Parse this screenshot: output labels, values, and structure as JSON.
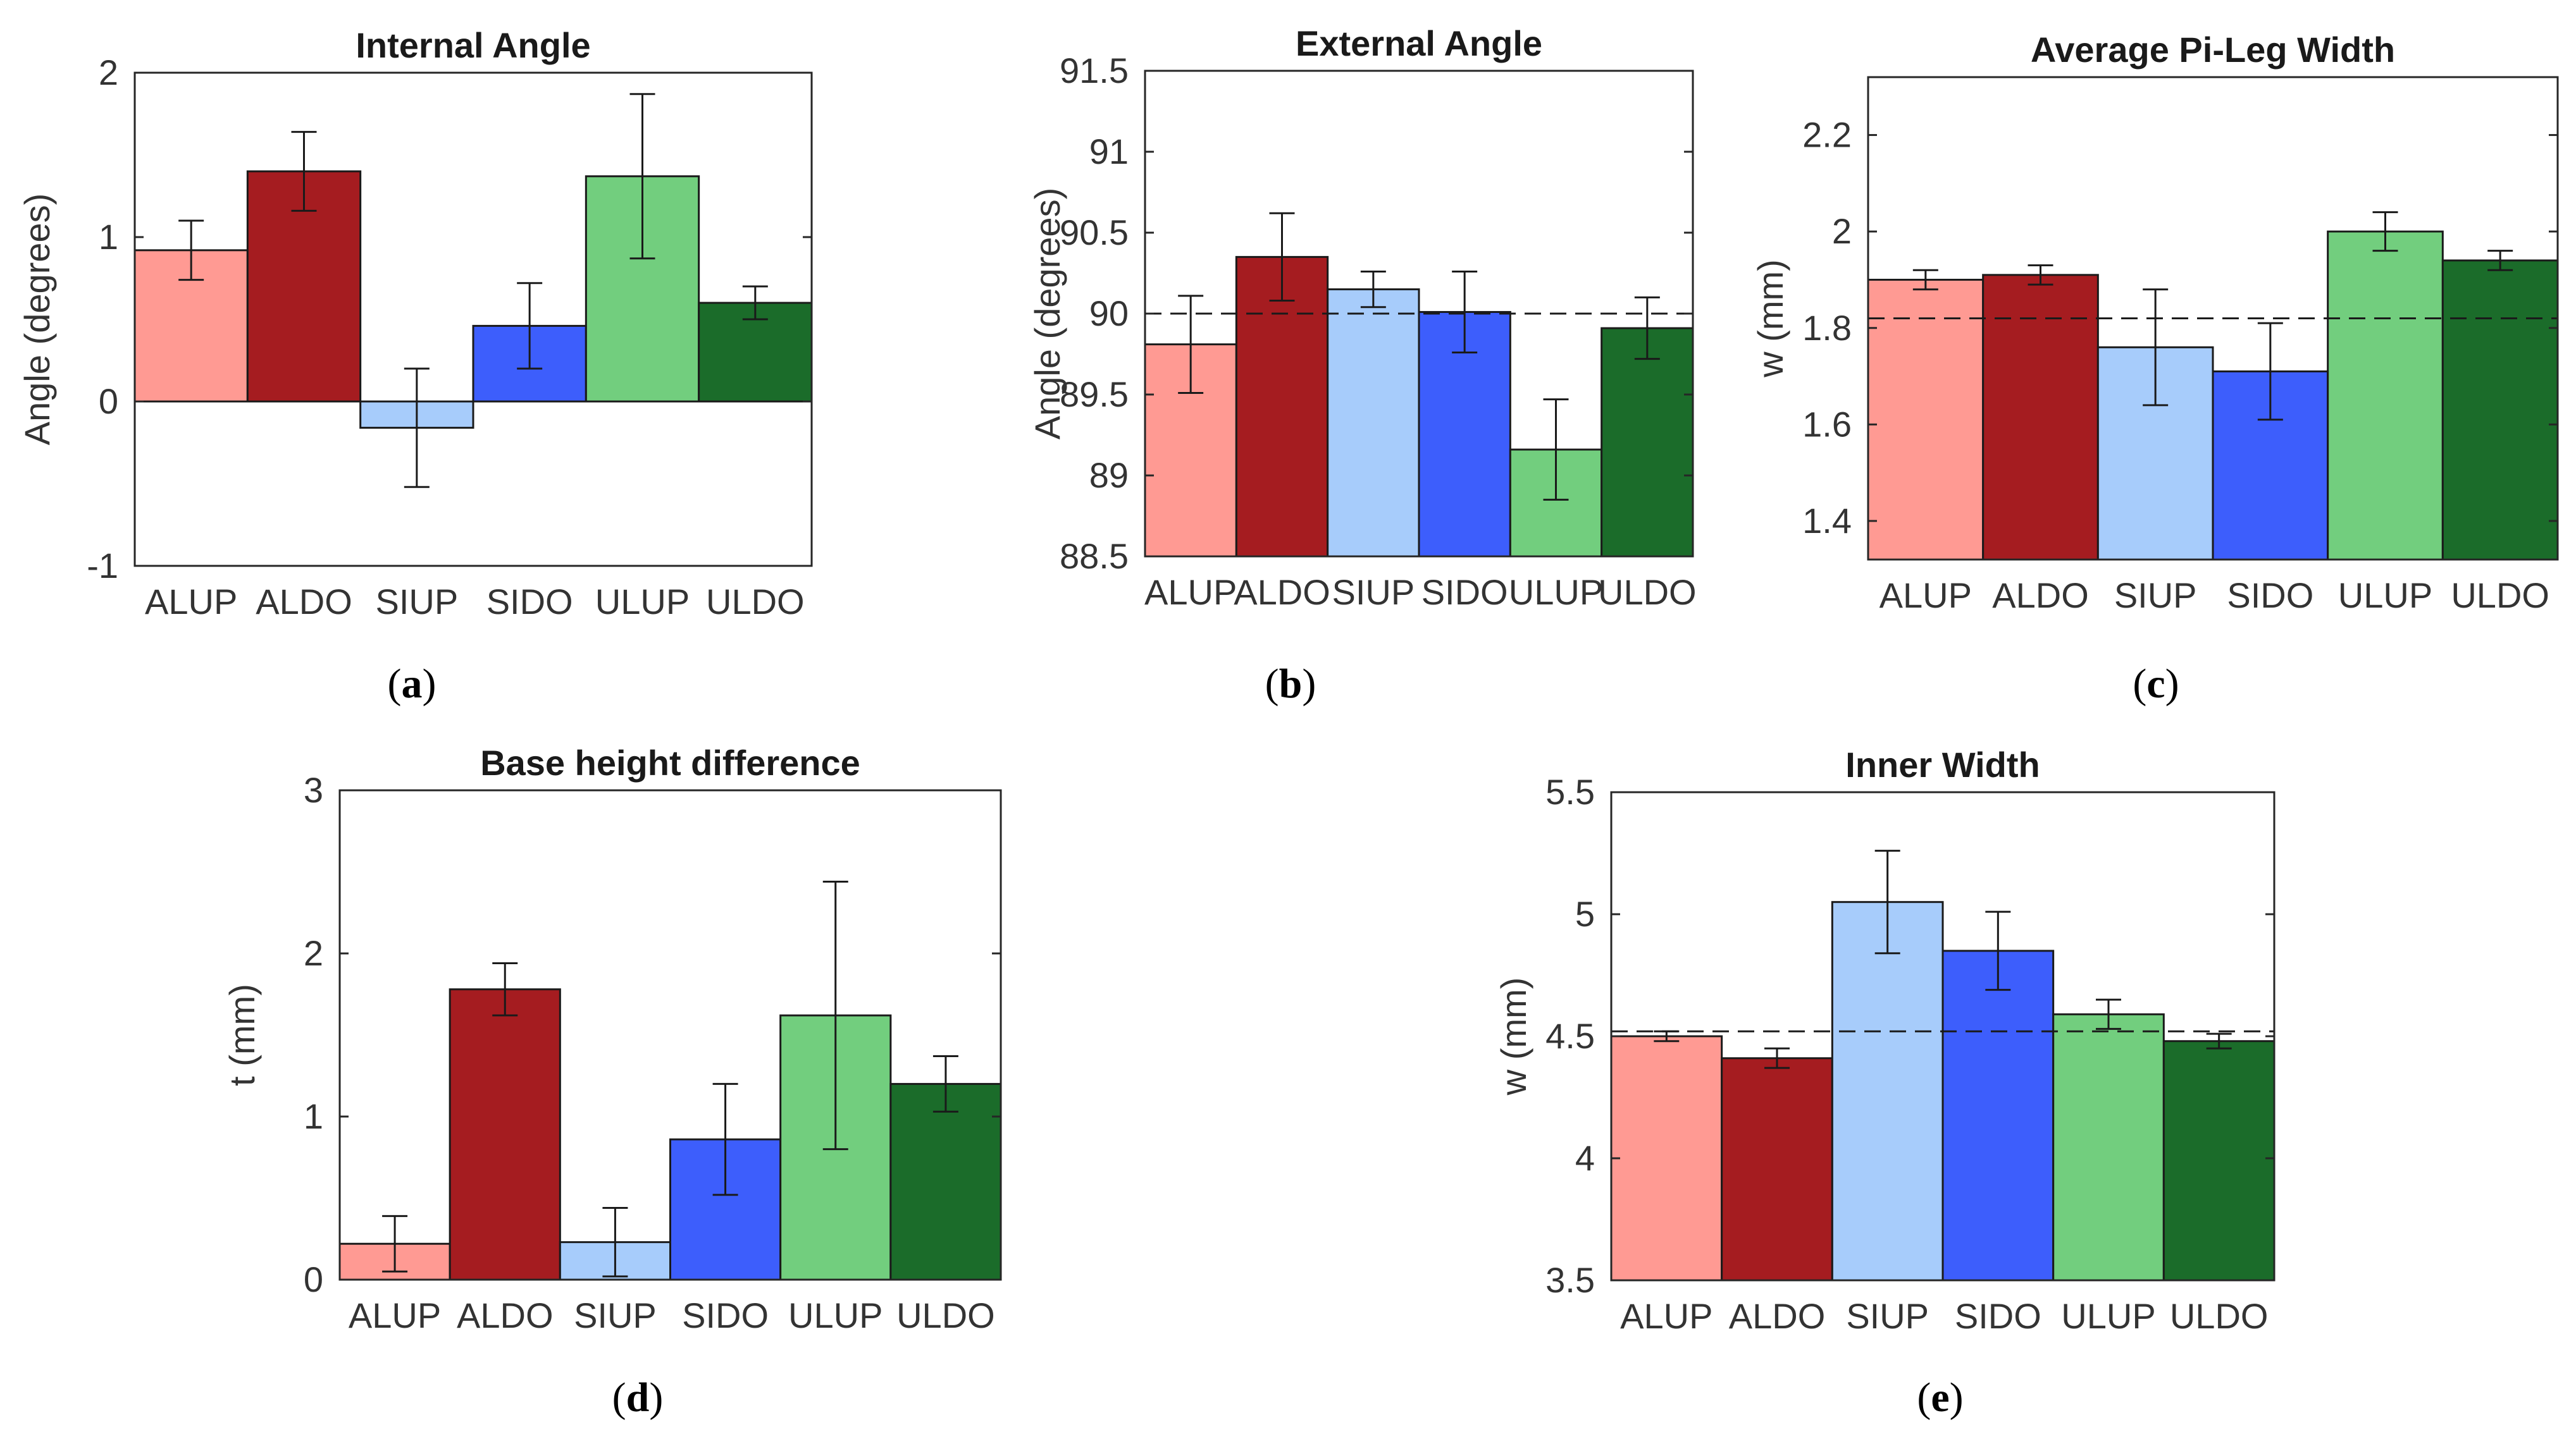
{
  "figure": {
    "sublabel_open": "(",
    "sublabel_close": ")"
  },
  "chart_data": [
    {
      "id": "a",
      "sublabel": "a",
      "type": "bar",
      "title": "Internal Angle",
      "ylabel": "Angle (degrees)",
      "xlabel": "",
      "categories": [
        "ALUP",
        "ALDO",
        "SIUP",
        "SIDO",
        "ULUP",
        "ULDO"
      ],
      "values": [
        0.92,
        1.4,
        -0.16,
        0.46,
        1.37,
        0.6
      ],
      "errors": [
        0.18,
        0.24,
        0.36,
        0.26,
        0.5,
        0.1
      ],
      "colors": [
        "#FF9A93",
        "#A51C20",
        "#A7CCFB",
        "#3D5EFC",
        "#72CE7E",
        "#1B6C2A"
      ],
      "ylim": [
        -1,
        2
      ],
      "yticks": [
        -1,
        0,
        1,
        2
      ],
      "ytick_labels": [
        "-1",
        "0",
        "1",
        "2"
      ],
      "reference_line": 0,
      "grid": false,
      "legend": "none"
    },
    {
      "id": "b",
      "sublabel": "b",
      "type": "bar",
      "title": "External Angle",
      "ylabel": "Angle (degrees)",
      "xlabel": "",
      "categories": [
        "ALUP",
        "ALDO",
        "SIUP",
        "SIDO",
        "ULUP",
        "ULDO"
      ],
      "values": [
        89.81,
        90.35,
        90.15,
        90.01,
        89.16,
        89.91
      ],
      "errors": [
        0.3,
        0.27,
        0.11,
        0.25,
        0.31,
        0.19
      ],
      "colors": [
        "#FF9A93",
        "#A51C20",
        "#A7CCFB",
        "#3D5EFC",
        "#72CE7E",
        "#1B6C2A"
      ],
      "ylim": [
        88.5,
        91.5
      ],
      "yticks": [
        88.5,
        89,
        89.5,
        90,
        90.5,
        91,
        91.5
      ],
      "ytick_labels": [
        "88.5",
        "89",
        "89.5",
        "90",
        "90.5",
        "91",
        "91.5"
      ],
      "reference_line": 90,
      "grid": false,
      "legend": "none"
    },
    {
      "id": "c",
      "sublabel": "c",
      "type": "bar",
      "title": "Average Pi-Leg Width",
      "ylabel": "w (mm)",
      "xlabel": "",
      "categories": [
        "ALUP",
        "ALDO",
        "SIUP",
        "SIDO",
        "ULUP",
        "ULDO"
      ],
      "values": [
        1.9,
        1.91,
        1.76,
        1.71,
        2.0,
        1.94
      ],
      "errors": [
        0.02,
        0.02,
        0.12,
        0.1,
        0.04,
        0.02
      ],
      "colors": [
        "#FF9A93",
        "#A51C20",
        "#A7CCFB",
        "#3D5EFC",
        "#72CE7E",
        "#1B6C2A"
      ],
      "ylim": [
        1.32,
        2.32
      ],
      "yticks": [
        1.4,
        1.6,
        1.8,
        2.0,
        2.2
      ],
      "ytick_labels": [
        "1.4",
        "1.6",
        "1.8",
        "2",
        "2.2"
      ],
      "reference_line": 1.82,
      "grid": false,
      "legend": "none"
    },
    {
      "id": "d",
      "sublabel": "d",
      "type": "bar",
      "title": "Base height difference",
      "ylabel": "t (mm)",
      "xlabel": "",
      "categories": [
        "ALUP",
        "ALDO",
        "SIUP",
        "SIDO",
        "ULUP",
        "ULDO"
      ],
      "values": [
        0.22,
        1.78,
        0.23,
        0.86,
        1.62,
        1.2
      ],
      "errors": [
        0.17,
        0.16,
        0.21,
        0.34,
        0.82,
        0.17
      ],
      "colors": [
        "#FF9A93",
        "#A51C20",
        "#A7CCFB",
        "#3D5EFC",
        "#72CE7E",
        "#1B6C2A"
      ],
      "ylim": [
        0,
        3
      ],
      "yticks": [
        0,
        1,
        2,
        3
      ],
      "ytick_labels": [
        "0",
        "1",
        "2",
        "3"
      ],
      "reference_line": null,
      "grid": false,
      "legend": "none"
    },
    {
      "id": "e",
      "sublabel": "e",
      "type": "bar",
      "title": "Inner Width",
      "ylabel": "w (mm)",
      "xlabel": "",
      "categories": [
        "ALUP",
        "ALDO",
        "SIUP",
        "SIDO",
        "ULUP",
        "ULDO"
      ],
      "values": [
        4.5,
        4.41,
        5.05,
        4.85,
        4.59,
        4.48
      ],
      "errors": [
        0.02,
        0.04,
        0.21,
        0.16,
        0.06,
        0.03
      ],
      "colors": [
        "#FF9A93",
        "#A51C20",
        "#A7CCFB",
        "#3D5EFC",
        "#72CE7E",
        "#1B6C2A"
      ],
      "ylim": [
        3.5,
        5.5
      ],
      "yticks": [
        3.5,
        4,
        4.5,
        5,
        5.5
      ],
      "ytick_labels": [
        "3.5",
        "4",
        "4.5",
        "5",
        "5.5"
      ],
      "reference_line": 4.52,
      "grid": false,
      "legend": "none"
    }
  ]
}
